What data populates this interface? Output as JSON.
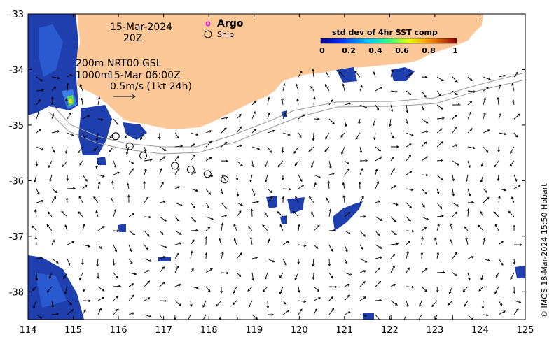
{
  "map": {
    "lon_range": [
      114,
      125
    ],
    "lat_range": [
      -38.5,
      -33
    ],
    "lon_ticks": [
      "114",
      "115",
      "116",
      "117",
      "118",
      "119",
      "120",
      "121",
      "122",
      "123",
      "124",
      "125"
    ],
    "lat_ticks": [
      "-33",
      "-34",
      "-35",
      "-36",
      "-37",
      "-38"
    ],
    "land_color": "#fdc897",
    "sea_color": "#ffffff"
  },
  "info": {
    "date": "15-Mar-2024",
    "hour": "20Z",
    "depth1": "200m",
    "depth2": "1000m",
    "product": "NRT00 GSL",
    "product_time": "15-Mar 06:00Z",
    "scale": "0.5m/s (1kt 24h)"
  },
  "legend": {
    "argo_label": "Argo",
    "argo_color": "#ff00ff",
    "ship_label": "Ship"
  },
  "colorbar": {
    "title": "std dev of 4hr SST comp",
    "ticks": [
      "0",
      "0.2",
      "0.4",
      "0.6",
      "0.8",
      "1"
    ]
  },
  "ship_positions": [
    [
      115.94,
      -35.2
    ],
    [
      116.25,
      -35.38
    ],
    [
      116.55,
      -35.55
    ],
    [
      117.25,
      -35.73
    ],
    [
      117.6,
      -35.8
    ],
    [
      117.97,
      -35.88
    ],
    [
      118.35,
      -35.98
    ]
  ],
  "credit": "© IMOS 18-Mar-2024 15:50 Hobart"
}
